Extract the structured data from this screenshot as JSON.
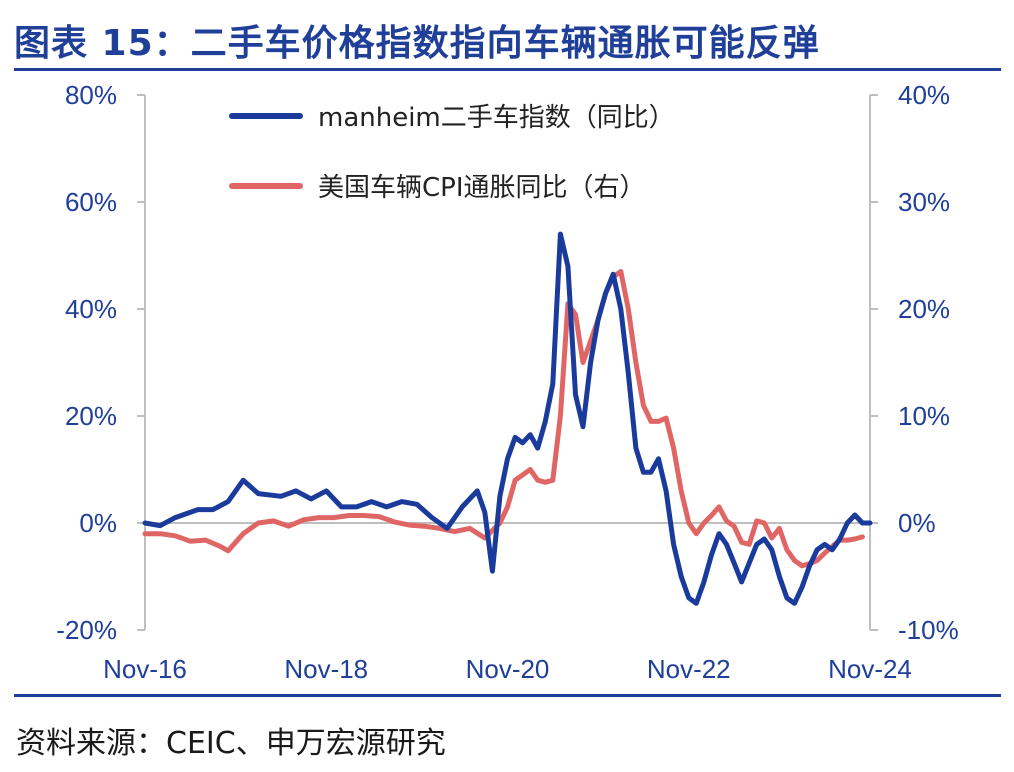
{
  "header": {
    "title": "图表 15：二手车价格指数指向车辆通胀可能反弹"
  },
  "footer": {
    "source": "资料来源：CEIC、申万宏源研究"
  },
  "chart_data": {
    "type": "line",
    "x_ticks": [
      "Nov-16",
      "Nov-18",
      "Nov-20",
      "Nov-22",
      "Nov-24"
    ],
    "x_range": [
      "2016-11",
      "2024-11"
    ],
    "y_left": {
      "ticks": [
        "80%",
        "60%",
        "40%",
        "20%",
        "0%",
        "-20%"
      ],
      "ylim": [
        -20,
        80
      ]
    },
    "y_right": {
      "ticks": [
        "40%",
        "30%",
        "20%",
        "10%",
        "0%",
        "-10%"
      ],
      "ylim": [
        -10,
        40
      ]
    },
    "grid": false,
    "legend_position": "top-center",
    "series": [
      {
        "name": "manheim二手车指数（同比）",
        "axis": "left",
        "color": "#1a3b9c",
        "points": [
          [
            "2016-11",
            0
          ],
          [
            "2017-01",
            -0.5
          ],
          [
            "2017-03",
            1
          ],
          [
            "2017-06",
            2.5
          ],
          [
            "2017-08",
            2.5
          ],
          [
            "2017-10",
            4
          ],
          [
            "2017-12",
            8
          ],
          [
            "2018-02",
            5.5
          ],
          [
            "2018-05",
            5
          ],
          [
            "2018-07",
            6
          ],
          [
            "2018-09",
            4.5
          ],
          [
            "2018-11",
            6
          ],
          [
            "2019-01",
            3
          ],
          [
            "2019-03",
            3
          ],
          [
            "2019-05",
            4
          ],
          [
            "2019-07",
            3
          ],
          [
            "2019-09",
            4
          ],
          [
            "2019-11",
            3.5
          ],
          [
            "2020-01",
            1
          ],
          [
            "2020-03",
            -1
          ],
          [
            "2020-05",
            3
          ],
          [
            "2020-07",
            6
          ],
          [
            "2020-08",
            2
          ],
          [
            "2020-09",
            -9
          ],
          [
            "2020-10",
            5
          ],
          [
            "2020-11",
            12
          ],
          [
            "2020-12",
            16
          ],
          [
            "2021-01",
            15
          ],
          [
            "2021-02",
            16.5
          ],
          [
            "2021-03",
            14
          ],
          [
            "2021-04",
            19
          ],
          [
            "2021-05",
            26
          ],
          [
            "2021-06",
            54
          ],
          [
            "2021-07",
            48
          ],
          [
            "2021-08",
            24
          ],
          [
            "2021-09",
            18
          ],
          [
            "2021-10",
            30
          ],
          [
            "2021-11",
            38
          ],
          [
            "2021-12",
            43
          ],
          [
            "2022-01",
            46.5
          ],
          [
            "2022-02",
            40
          ],
          [
            "2022-03",
            28
          ],
          [
            "2022-04",
            14
          ],
          [
            "2022-05",
            9.5
          ],
          [
            "2022-06",
            9.5
          ],
          [
            "2022-07",
            12
          ],
          [
            "2022-08",
            6
          ],
          [
            "2022-09",
            -4
          ],
          [
            "2022-10",
            -10
          ],
          [
            "2022-11",
            -14
          ],
          [
            "2022-12",
            -15
          ],
          [
            "2023-01",
            -11
          ],
          [
            "2023-02",
            -6
          ],
          [
            "2023-03",
            -2
          ],
          [
            "2023-04",
            -4
          ],
          [
            "2023-05",
            -7.5
          ],
          [
            "2023-06",
            -11
          ],
          [
            "2023-08",
            -4
          ],
          [
            "2023-09",
            -3
          ],
          [
            "2023-10",
            -5
          ],
          [
            "2023-11",
            -10
          ],
          [
            "2023-12",
            -14
          ],
          [
            "2024-01",
            -15
          ],
          [
            "2024-02",
            -12
          ],
          [
            "2024-03",
            -8
          ],
          [
            "2024-04",
            -5
          ],
          [
            "2024-05",
            -4
          ],
          [
            "2024-06",
            -5
          ],
          [
            "2024-07",
            -3
          ],
          [
            "2024-08",
            0
          ],
          [
            "2024-09",
            1.5
          ],
          [
            "2024-10",
            0
          ],
          [
            "2024-11",
            0
          ]
        ]
      },
      {
        "name": "美国车辆CPI通胀同比（右）",
        "axis": "right",
        "color": "#e06666",
        "points": [
          [
            "2016-11",
            -1
          ],
          [
            "2017-01",
            -1
          ],
          [
            "2017-03",
            -1.2
          ],
          [
            "2017-05",
            -1.7
          ],
          [
            "2017-07",
            -1.6
          ],
          [
            "2017-09",
            -2.2
          ],
          [
            "2017-10",
            -2.6
          ],
          [
            "2017-12",
            -1
          ],
          [
            "2018-02",
            0
          ],
          [
            "2018-04",
            0.2
          ],
          [
            "2018-06",
            -0.3
          ],
          [
            "2018-08",
            0.3
          ],
          [
            "2018-10",
            0.5
          ],
          [
            "2018-12",
            0.5
          ],
          [
            "2019-02",
            0.7
          ],
          [
            "2019-04",
            0.7
          ],
          [
            "2019-06",
            0.6
          ],
          [
            "2019-08",
            0.1
          ],
          [
            "2019-10",
            -0.2
          ],
          [
            "2019-12",
            -0.3
          ],
          [
            "2020-02",
            -0.5
          ],
          [
            "2020-04",
            -0.8
          ],
          [
            "2020-06",
            -0.5
          ],
          [
            "2020-08",
            -1.4
          ],
          [
            "2020-10",
            0
          ],
          [
            "2020-11",
            1.5
          ],
          [
            "2020-12",
            4
          ],
          [
            "2021-01",
            4.5
          ],
          [
            "2021-02",
            5
          ],
          [
            "2021-03",
            4
          ],
          [
            "2021-04",
            3.8
          ],
          [
            "2021-05",
            4
          ],
          [
            "2021-06",
            10
          ],
          [
            "2021-07",
            20.5
          ],
          [
            "2021-08",
            19.5
          ],
          [
            "2021-09",
            15
          ],
          [
            "2021-10",
            17
          ],
          [
            "2021-11",
            19
          ],
          [
            "2021-12",
            21.5
          ],
          [
            "2022-01",
            23
          ],
          [
            "2022-02",
            23.5
          ],
          [
            "2022-03",
            20
          ],
          [
            "2022-04",
            15
          ],
          [
            "2022-05",
            11
          ],
          [
            "2022-06",
            9.5
          ],
          [
            "2022-07",
            9.5
          ],
          [
            "2022-08",
            9.8
          ],
          [
            "2022-09",
            7
          ],
          [
            "2022-10",
            3
          ],
          [
            "2022-11",
            0
          ],
          [
            "2022-12",
            -1
          ],
          [
            "2023-01",
            0
          ],
          [
            "2023-02",
            0.7
          ],
          [
            "2023-03",
            1.5
          ],
          [
            "2023-04",
            0.2
          ],
          [
            "2023-05",
            -0.3
          ],
          [
            "2023-06",
            -1.8
          ],
          [
            "2023-07",
            -2
          ],
          [
            "2023-08",
            0.2
          ],
          [
            "2023-09",
            0
          ],
          [
            "2023-10",
            -1.4
          ],
          [
            "2023-11",
            -0.5
          ],
          [
            "2023-12",
            -2.5
          ],
          [
            "2024-01",
            -3.5
          ],
          [
            "2024-02",
            -4
          ],
          [
            "2024-03",
            -3.8
          ],
          [
            "2024-04",
            -3.5
          ],
          [
            "2024-05",
            -2.8
          ],
          [
            "2024-06",
            -2.2
          ],
          [
            "2024-07",
            -1.6
          ],
          [
            "2024-08",
            -1.6
          ],
          [
            "2024-09",
            -1.5
          ],
          [
            "2024-10",
            -1.3
          ]
        ]
      }
    ]
  }
}
